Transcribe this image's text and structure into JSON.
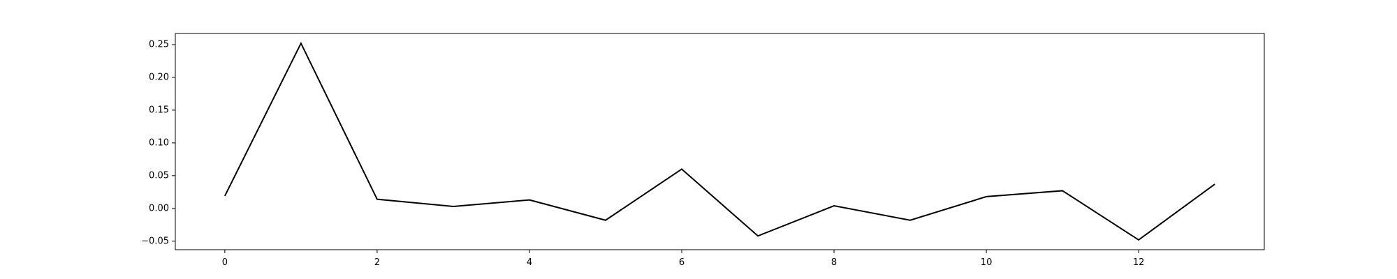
{
  "chart_data": {
    "type": "line",
    "title": "",
    "xlabel": "",
    "ylabel": "",
    "xlim": [
      -0.65,
      13.65
    ],
    "ylim": [
      -0.063,
      0.267
    ],
    "x_ticks": [
      0,
      2,
      4,
      6,
      8,
      10,
      12
    ],
    "x_tick_labels": [
      "0",
      "2",
      "4",
      "6",
      "8",
      "10",
      "12"
    ],
    "y_ticks": [
      -0.05,
      0.0,
      0.05,
      0.1,
      0.15,
      0.2,
      0.25
    ],
    "y_tick_labels": [
      "−0.05",
      "0.00",
      "0.05",
      "0.10",
      "0.15",
      "0.20",
      "0.25"
    ],
    "grid": false,
    "legend": "none",
    "series": [
      {
        "color": "#000000",
        "x": [
          0,
          1,
          2,
          3,
          4,
          5,
          6,
          7,
          8,
          9,
          10,
          11,
          12,
          13
        ],
        "values": [
          0.019,
          0.252,
          0.014,
          0.003,
          0.013,
          -0.018,
          0.06,
          -0.042,
          0.004,
          -0.018,
          0.018,
          0.027,
          -0.048,
          0.037
        ]
      }
    ]
  }
}
